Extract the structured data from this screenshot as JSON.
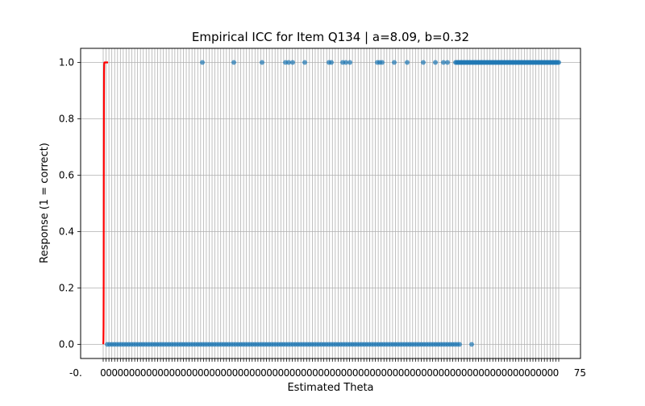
{
  "chart_data": {
    "type": "scatter",
    "title": "Empirical ICC for Item Q134 | a=8.09, b=0.32",
    "xlabel": "Estimated Theta",
    "ylabel": "Response (1 = correct)",
    "ylim": [
      -0.05,
      1.05
    ],
    "y_ticks": [
      "0.0",
      "0.2",
      "0.4",
      "0.6",
      "0.8",
      "1.0"
    ],
    "x_tick_labels_first": "-0.",
    "x_tick_labels_last": "75",
    "x_tick_count": 160,
    "grid": true,
    "item": {
      "a": 8.09,
      "b": 0.32
    },
    "series": [
      {
        "kind": "scatter",
        "color": "#1f77b4",
        "responses_0_count": 150,
        "responses_1_count": 120
      },
      {
        "kind": "line",
        "color": "#ff0000"
      }
    ]
  },
  "colors": {
    "points": "#1f77b4",
    "curve": "#ff0000",
    "grid": "#b0b0b0"
  }
}
